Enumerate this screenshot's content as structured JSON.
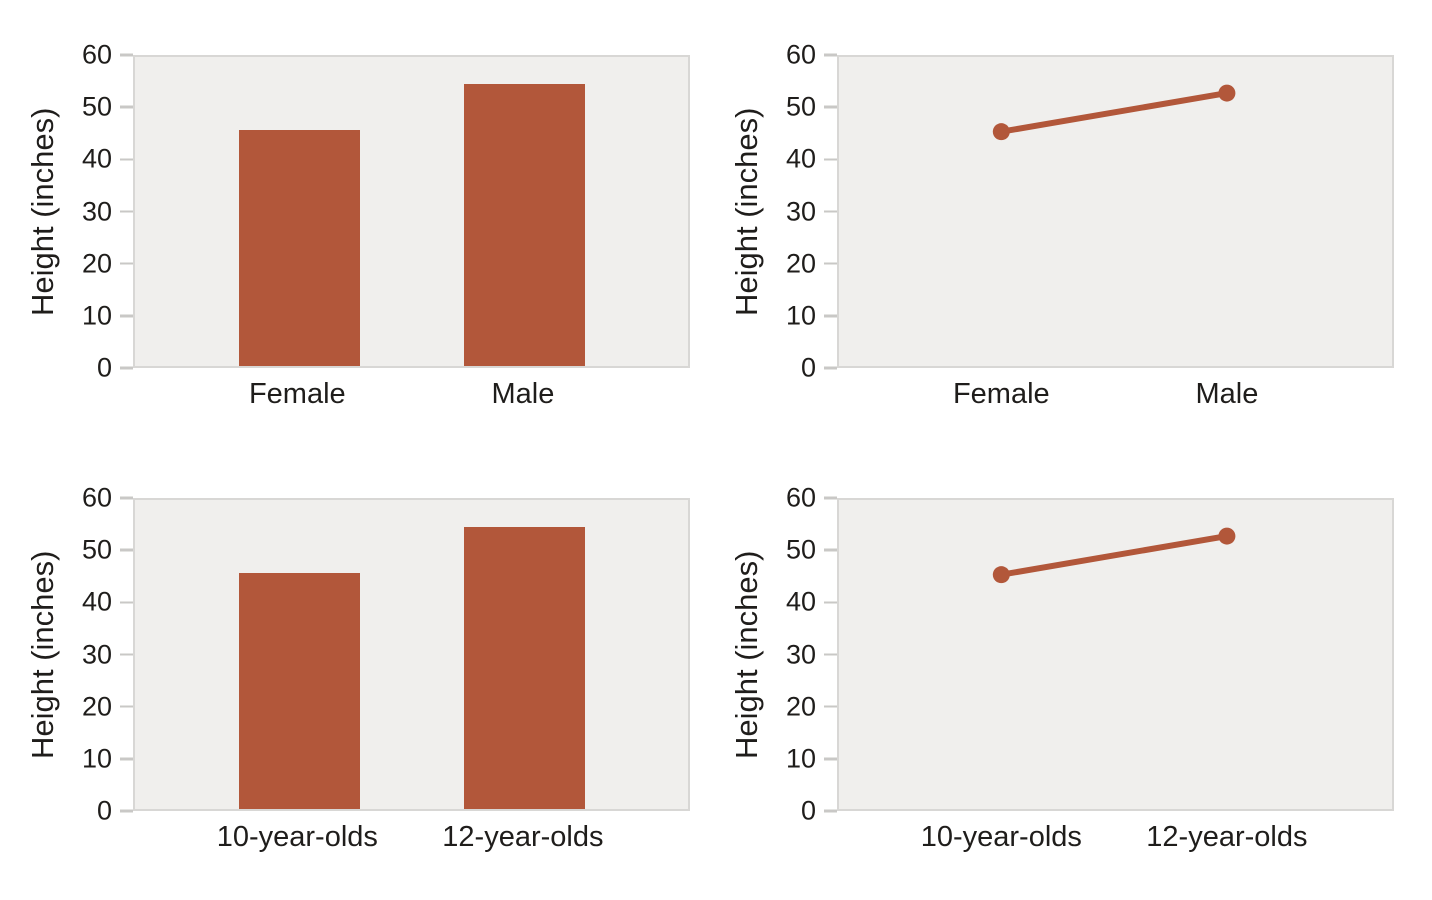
{
  "styles": {
    "accent": "#b2573a",
    "plot_bg": "#f0efed",
    "plot_border": "#d8d7d5",
    "tick_color": "#c9c8c6",
    "text_color": "#1f1d1b",
    "page_bg": "#ffffff"
  },
  "chart_data": [
    {
      "type": "bar",
      "title": "",
      "categories": [
        "Female",
        "Male"
      ],
      "values": [
        45.9,
        54.7
      ],
      "xlabel": "",
      "ylabel": "Height (inches)",
      "ylim": [
        0,
        60
      ],
      "yticks": [
        0,
        10,
        20,
        30,
        40,
        50,
        60
      ],
      "grid": false,
      "legend": "none"
    },
    {
      "type": "line",
      "title": "",
      "categories": [
        "Female",
        "Male"
      ],
      "values": [
        45.3,
        52.7
      ],
      "xlabel": "",
      "ylabel": "Height (inches)",
      "ylim": [
        0,
        60
      ],
      "yticks": [
        0,
        10,
        20,
        30,
        40,
        50,
        60
      ],
      "grid": false,
      "legend": "none"
    },
    {
      "type": "bar",
      "title": "",
      "categories": [
        "10-year-olds",
        "12-year-olds"
      ],
      "values": [
        45.9,
        54.7
      ],
      "xlabel": "",
      "ylabel": "Height (inches)",
      "ylim": [
        0,
        60
      ],
      "yticks": [
        0,
        10,
        20,
        30,
        40,
        50,
        60
      ],
      "grid": false,
      "legend": "none"
    },
    {
      "type": "line",
      "title": "",
      "categories": [
        "10-year-olds",
        "12-year-olds"
      ],
      "values": [
        45.3,
        52.7
      ],
      "xlabel": "",
      "ylabel": "Height (inches)",
      "ylim": [
        0,
        60
      ],
      "yticks": [
        0,
        10,
        20,
        30,
        40,
        50,
        60
      ],
      "grid": false,
      "legend": "none"
    }
  ]
}
